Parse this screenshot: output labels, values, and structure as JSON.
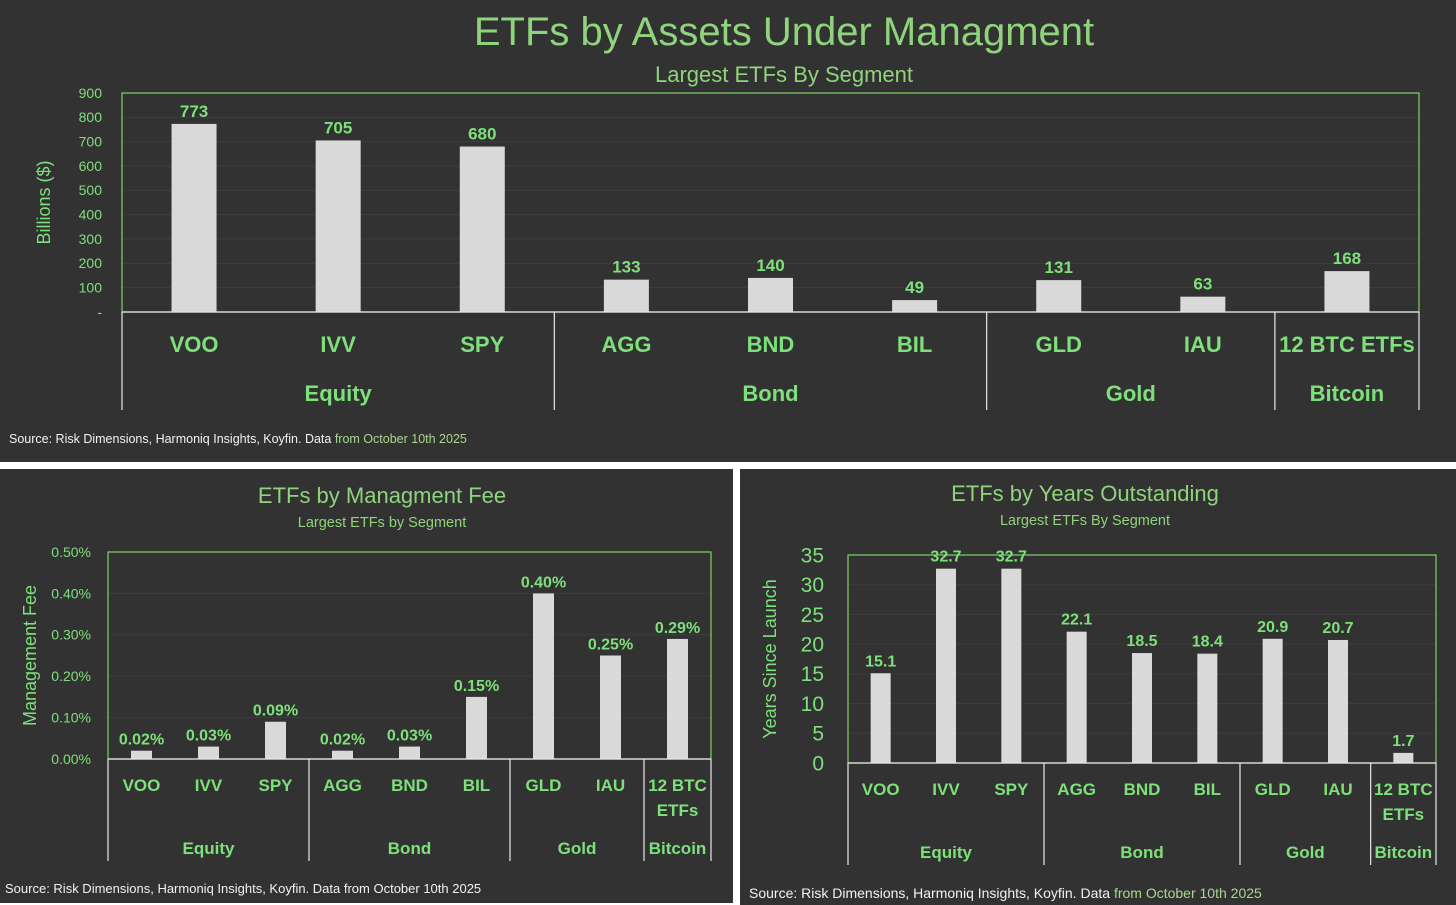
{
  "colors": {
    "background": "#323232",
    "accent_green": "#7ee07a",
    "title_green": "#8fd47c",
    "bar": "#d9d9d9",
    "frame": "#7fd36a"
  },
  "chart_data": [
    {
      "type": "bar",
      "title": "ETFs by Assets Under Managment",
      "subtitle": "Largest ETFs By Segment",
      "ylabel": "Billions ($)",
      "xlabel": "",
      "ylim": [
        0,
        900
      ],
      "yticks": [
        "-",
        "100",
        "200",
        "300",
        "400",
        "500",
        "600",
        "700",
        "800",
        "900"
      ],
      "grid": true,
      "categories": [
        "VOO",
        "IVV",
        "SPY",
        "AGG",
        "BND",
        "BIL",
        "GLD",
        "IAU",
        "12 BTC ETFs"
      ],
      "values": [
        773,
        705,
        680,
        133,
        140,
        49,
        131,
        63,
        168
      ],
      "data_labels": [
        "773",
        "705",
        "680",
        "133",
        "140",
        "49",
        "131",
        "63",
        "168"
      ],
      "groups": [
        {
          "name": "Equity",
          "count": 3
        },
        {
          "name": "Bond",
          "count": 3
        },
        {
          "name": "Gold",
          "count": 2
        },
        {
          "name": "Bitcoin",
          "count": 1
        }
      ],
      "source_main": "Source: Risk Dimensions, Harmoniq Insights, Koyfin. Data ",
      "source_tail": "from October 10th 2025"
    },
    {
      "type": "bar",
      "title": "ETFs by Managment Fee",
      "subtitle": "Largest ETFs by Segment",
      "ylabel": "Management Fee",
      "xlabel": "",
      "ylim": [
        0,
        0.5
      ],
      "yticks": [
        "0.00%",
        "0.10%",
        "0.20%",
        "0.30%",
        "0.40%",
        "0.50%"
      ],
      "grid": true,
      "categories": [
        "VOO",
        "IVV",
        "SPY",
        "AGG",
        "BND",
        "BIL",
        "GLD",
        "IAU",
        "12 BTC ETFs"
      ],
      "category_lines": [
        [
          "VOO"
        ],
        [
          "IVV"
        ],
        [
          "SPY"
        ],
        [
          "AGG"
        ],
        [
          "BND"
        ],
        [
          "BIL"
        ],
        [
          "GLD"
        ],
        [
          "IAU"
        ],
        [
          "12 BTC",
          "ETFs"
        ]
      ],
      "values": [
        0.02,
        0.03,
        0.09,
        0.02,
        0.03,
        0.15,
        0.4,
        0.25,
        0.29
      ],
      "data_labels": [
        "0.02%",
        "0.03%",
        "0.09%",
        "0.02%",
        "0.03%",
        "0.15%",
        "0.40%",
        "0.25%",
        "0.29%"
      ],
      "groups": [
        {
          "name": "Equity",
          "count": 3
        },
        {
          "name": "Bond",
          "count": 3
        },
        {
          "name": "Gold",
          "count": 2
        },
        {
          "name": "Bitcoin",
          "count": 1
        }
      ],
      "source_main": "Source: Risk Dimensions, Harmoniq Insights, Koyfin. Data from October 10th 2025",
      "source_tail": ""
    },
    {
      "type": "bar",
      "title": "ETFs by Years Outstanding",
      "subtitle": "Largest ETFs By Segment",
      "ylabel": "Years Since Launch",
      "xlabel": "",
      "ylim": [
        0,
        35
      ],
      "yticks": [
        "0",
        "5",
        "10",
        "15",
        "20",
        "25",
        "30",
        "35"
      ],
      "grid": true,
      "categories": [
        "VOO",
        "IVV",
        "SPY",
        "AGG",
        "BND",
        "BIL",
        "GLD",
        "IAU",
        "12 BTC ETFs"
      ],
      "category_lines": [
        [
          "VOO"
        ],
        [
          "IVV"
        ],
        [
          "SPY"
        ],
        [
          "AGG"
        ],
        [
          "BND"
        ],
        [
          "BIL"
        ],
        [
          "GLD"
        ],
        [
          "IAU"
        ],
        [
          "12 BTC",
          "ETFs"
        ]
      ],
      "values": [
        15.1,
        32.7,
        32.7,
        22.1,
        18.5,
        18.4,
        20.9,
        20.7,
        1.7
      ],
      "data_labels": [
        "15.1",
        "32.7",
        "32.7",
        "22.1",
        "18.5",
        "18.4",
        "20.9",
        "20.7",
        "1.7"
      ],
      "groups": [
        {
          "name": "Equity",
          "count": 3
        },
        {
          "name": "Bond",
          "count": 3
        },
        {
          "name": "Gold",
          "count": 2
        },
        {
          "name": "Bitcoin",
          "count": 1
        }
      ],
      "source_main": "Source: Risk Dimensions, Harmoniq Insights, Koyfin. Data ",
      "source_tail": "from October 10th 2025"
    }
  ]
}
